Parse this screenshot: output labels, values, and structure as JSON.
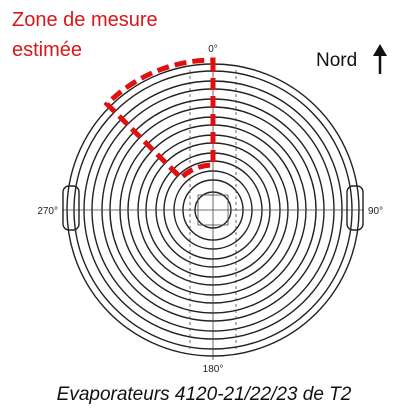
{
  "zone_label": [
    "Zone de mesure",
    "estimée"
  ],
  "north_label": "Nord",
  "angles": {
    "top": "0°",
    "right": "90°",
    "bottom": "180°",
    "left": "270°"
  },
  "caption": "Evaporateurs 4120-21/22/23 de T2"
}
